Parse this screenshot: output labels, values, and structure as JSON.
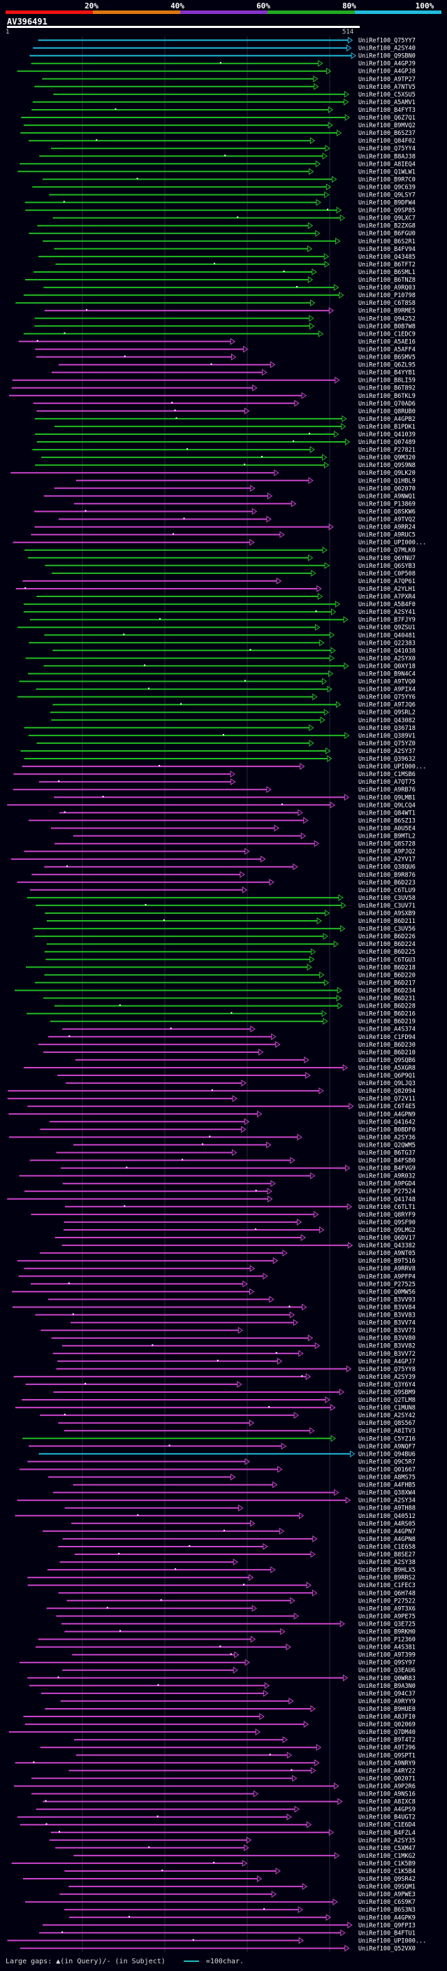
{
  "scale": {
    "labels": [
      "20%",
      "40%",
      "60%",
      "80%",
      "100%"
    ],
    "colors": [
      "#ee1111",
      "#dd7711",
      "#8833cc",
      "#22aa22",
      "#22bbdd"
    ]
  },
  "query": {
    "id": "AV396491",
    "start": "1",
    "end": "514"
  },
  "legend": {
    "gaps_text": "Large gaps: ▲(in Query)/- (in Subject)",
    "scale_text": "=100char."
  },
  "colors": {
    "cyan": "#22bbdd",
    "green": "#22bb22",
    "magenta": "#cc44cc",
    "label": "#ffffff"
  },
  "hits": [
    {
      "id": "UniRef100_Q75YY7",
      "c": "cyan"
    },
    {
      "id": "UniRef100_A2SY40",
      "c": "cyan"
    },
    {
      "id": "UniRef100_Q9SBN0",
      "c": "cyan"
    },
    {
      "id": "UniRef100_A4GPJ9",
      "c": "green"
    },
    {
      "id": "UniRef100_A4GPJ8",
      "c": "green"
    },
    {
      "id": "UniRef100_A9TP27",
      "c": "green"
    },
    {
      "id": "UniRef100_A7NTV5",
      "c": "green"
    },
    {
      "id": "UniRef100_C5XSU5",
      "c": "green"
    },
    {
      "id": "UniRef100_A5AMV1",
      "c": "green"
    },
    {
      "id": "UniRef100_B4FYT3",
      "c": "green"
    },
    {
      "id": "UniRef100_Q6Z7Q1",
      "c": "green"
    },
    {
      "id": "UniRef100_B9MVQ2",
      "c": "green"
    },
    {
      "id": "UniRef100_B6SZ37",
      "c": "green"
    },
    {
      "id": "UniRef100_Q84F02",
      "c": "green"
    },
    {
      "id": "UniRef100_Q75YY4",
      "c": "green"
    },
    {
      "id": "UniRef100_B8AJ38",
      "c": "green"
    },
    {
      "id": "UniRef100_A8IEQ4",
      "c": "green"
    },
    {
      "id": "UniRef100_Q1WLW1",
      "c": "green"
    },
    {
      "id": "UniRef100_B9R7C0",
      "c": "green"
    },
    {
      "id": "UniRef100_Q9C639",
      "c": "green"
    },
    {
      "id": "UniRef100_Q9LSY7",
      "c": "green"
    },
    {
      "id": "UniRef100_B9DFW4",
      "c": "green"
    },
    {
      "id": "UniRef100_Q9SP85",
      "c": "green"
    },
    {
      "id": "UniRef100_Q9LXC7",
      "c": "green"
    },
    {
      "id": "UniRef100_B2ZXG8",
      "c": "green"
    },
    {
      "id": "UniRef100_B6FGU0",
      "c": "green"
    },
    {
      "id": "UniRef100_B6S2R1",
      "c": "green"
    },
    {
      "id": "UniRef100_B4FV94",
      "c": "green"
    },
    {
      "id": "UniRef100_Q43485",
      "c": "green"
    },
    {
      "id": "UniRef100_B6TFT2",
      "c": "green"
    },
    {
      "id": "UniRef100_B6SML1",
      "c": "green"
    },
    {
      "id": "UniRef100_B6TNZ8",
      "c": "green"
    },
    {
      "id": "UniRef100_A9RQ03",
      "c": "green"
    },
    {
      "id": "UniRef100_P10798",
      "c": "green"
    },
    {
      "id": "UniRef100_C6T8S8",
      "c": "green"
    },
    {
      "id": "UniRef100_B9RME5",
      "c": "magenta"
    },
    {
      "id": "UniRef100_Q94252",
      "c": "green"
    },
    {
      "id": "UniRef100_B0B7W8",
      "c": "green"
    },
    {
      "id": "UniRef100_C1EDC9",
      "c": "green"
    },
    {
      "id": "UniRef100_A5AE16",
      "c": "magenta"
    },
    {
      "id": "UniRef100_A5AFF4",
      "c": "magenta"
    },
    {
      "id": "UniRef100_B6SMV5",
      "c": "magenta"
    },
    {
      "id": "UniRef100_Q6ZL95",
      "c": "magenta"
    },
    {
      "id": "UniRef100_B4YYB1",
      "c": "magenta"
    },
    {
      "id": "UniRef100_B8LI59",
      "c": "magenta"
    },
    {
      "id": "UniRef100_B6T892",
      "c": "magenta"
    },
    {
      "id": "UniRef100_B6TKL9",
      "c": "magenta"
    },
    {
      "id": "UniRef100_Q70AD6",
      "c": "magenta"
    },
    {
      "id": "UniRef100_Q8RUB0",
      "c": "magenta"
    },
    {
      "id": "UniRef100_A4GPB2",
      "c": "green"
    },
    {
      "id": "UniRef100_B1PDK1",
      "c": "green"
    },
    {
      "id": "UniRef100_Q41039",
      "c": "green"
    },
    {
      "id": "UniRef100_Q07489",
      "c": "green"
    },
    {
      "id": "UniRef100_P27821",
      "c": "green"
    },
    {
      "id": "UniRef100_Q9M320",
      "c": "green"
    },
    {
      "id": "UniRef100_Q9S9N8",
      "c": "green"
    },
    {
      "id": "UniRef100_Q9LK20",
      "c": "magenta"
    },
    {
      "id": "UniRef100_Q1HBL9",
      "c": "magenta"
    },
    {
      "id": "UniRef100_Q02070",
      "c": "magenta"
    },
    {
      "id": "UniRef100_A9NWQ1",
      "c": "magenta"
    },
    {
      "id": "UniRef100_P13869",
      "c": "magenta"
    },
    {
      "id": "UniRef100_Q8SKW6",
      "c": "magenta"
    },
    {
      "id": "UniRef100_A9TVQ2",
      "c": "magenta"
    },
    {
      "id": "UniRef100_A9RR24",
      "c": "magenta"
    },
    {
      "id": "UniRef100_A9RUC5",
      "c": "magenta"
    },
    {
      "id": "UniRef100_UPI000...",
      "c": "magenta"
    },
    {
      "id": "UniRef100_Q7MLK0",
      "c": "green"
    },
    {
      "id": "UniRef100_Q6YNU7",
      "c": "green"
    },
    {
      "id": "UniRef100_Q6SYB3",
      "c": "green"
    },
    {
      "id": "UniRef100_C0P508",
      "c": "green"
    },
    {
      "id": "UniRef100_A7QP61",
      "c": "magenta"
    },
    {
      "id": "UniRef100_A2YLH1",
      "c": "magenta"
    },
    {
      "id": "UniRef100_A7PXR4",
      "c": "green"
    },
    {
      "id": "UniRef100_A5B4F0",
      "c": "green"
    },
    {
      "id": "UniRef100_A2SY41",
      "c": "green"
    },
    {
      "id": "UniRef100_B7FJY9",
      "c": "green"
    },
    {
      "id": "UniRef100_Q9ZSU1",
      "c": "green"
    },
    {
      "id": "UniRef100_Q40481",
      "c": "green"
    },
    {
      "id": "UniRef100_Q22383",
      "c": "green"
    },
    {
      "id": "UniRef100_Q41038",
      "c": "green"
    },
    {
      "id": "UniRef100_A2SYX0",
      "c": "green"
    },
    {
      "id": "UniRef100_Q0XY18",
      "c": "green"
    },
    {
      "id": "UniRef100_B9N4C4",
      "c": "green"
    },
    {
      "id": "UniRef100_A9TVQ0",
      "c": "green"
    },
    {
      "id": "UniRef100_A9PIX4",
      "c": "green"
    },
    {
      "id": "UniRef100_Q75YY6",
      "c": "green"
    },
    {
      "id": "UniRef100_A9TJQ6",
      "c": "green"
    },
    {
      "id": "UniRef100_Q9SRL2",
      "c": "green"
    },
    {
      "id": "UniRef100_Q43082",
      "c": "green"
    },
    {
      "id": "UniRef100_Q36718",
      "c": "green"
    },
    {
      "id": "UniRef100_Q389V1",
      "c": "green"
    },
    {
      "id": "UniRef100_Q75YZ0",
      "c": "green"
    },
    {
      "id": "UniRef100_A2SY37",
      "c": "green"
    },
    {
      "id": "UniRef100_Q39632",
      "c": "green"
    },
    {
      "id": "UniRef100_UPI000...",
      "c": "magenta"
    },
    {
      "id": "UniRef100_C1MSB6",
      "c": "magenta"
    },
    {
      "id": "UniRef100_A7QT75",
      "c": "magenta"
    },
    {
      "id": "UniRef100_A9RB76",
      "c": "magenta"
    },
    {
      "id": "UniRef100_Q9LMB1",
      "c": "magenta"
    },
    {
      "id": "UniRef100_Q9LCQ4",
      "c": "magenta"
    },
    {
      "id": "UniRef100_Q84WT1",
      "c": "magenta"
    },
    {
      "id": "UniRef100_B6SZ13",
      "c": "magenta"
    },
    {
      "id": "UniRef100_A0U5E4",
      "c": "magenta"
    },
    {
      "id": "UniRef100_B9MTL2",
      "c": "magenta"
    },
    {
      "id": "UniRef100_Q8S728",
      "c": "magenta"
    },
    {
      "id": "UniRef100_A9PJQ2",
      "c": "magenta"
    },
    {
      "id": "UniRef100_A2YV17",
      "c": "magenta"
    },
    {
      "id": "UniRef100_Q38QU6",
      "c": "magenta"
    },
    {
      "id": "UniRef100_B9R876",
      "c": "magenta"
    },
    {
      "id": "UniRef100_B6D223",
      "c": "magenta"
    },
    {
      "id": "UniRef100_C6TLU9",
      "c": "magenta"
    },
    {
      "id": "UniRef100_C3UV58",
      "c": "green"
    },
    {
      "id": "UniRef100_C3UV71",
      "c": "green"
    },
    {
      "id": "UniRef100_A9SXB9",
      "c": "green"
    },
    {
      "id": "UniRef100_B6D211",
      "c": "green"
    },
    {
      "id": "UniRef100_C3UV56",
      "c": "green"
    },
    {
      "id": "UniRef100_B6D226",
      "c": "green"
    },
    {
      "id": "UniRef100_B6D224",
      "c": "green"
    },
    {
      "id": "UniRef100_B6D225",
      "c": "green"
    },
    {
      "id": "UniRef100_C6TGU3",
      "c": "green"
    },
    {
      "id": "UniRef100_B6D218",
      "c": "green"
    },
    {
      "id": "UniRef100_B6D220",
      "c": "green"
    },
    {
      "id": "UniRef100_B6D217",
      "c": "green"
    },
    {
      "id": "UniRef100_B6D234",
      "c": "green"
    },
    {
      "id": "UniRef100_B6D231",
      "c": "green"
    },
    {
      "id": "UniRef100_B6D228",
      "c": "green"
    },
    {
      "id": "UniRef100_B6D216",
      "c": "green"
    },
    {
      "id": "UniRef100_B6D219",
      "c": "green"
    },
    {
      "id": "UniRef100_A4S374",
      "c": "magenta"
    },
    {
      "id": "UniRef100_C1FD94",
      "c": "magenta"
    },
    {
      "id": "UniRef100_B6D230",
      "c": "magenta"
    },
    {
      "id": "UniRef100_B6D210",
      "c": "magenta"
    },
    {
      "id": "UniRef100_Q9SQB6",
      "c": "magenta"
    },
    {
      "id": "UniRef100_A5XGR8",
      "c": "magenta"
    },
    {
      "id": "UniRef100_Q6P9Q1",
      "c": "magenta"
    },
    {
      "id": "UniRef100_Q9LJQ3",
      "c": "magenta"
    },
    {
      "id": "UniRef100_Q82094",
      "c": "magenta"
    },
    {
      "id": "UniRef100_Q72V11",
      "c": "magenta"
    },
    {
      "id": "UniRef100_C6T4E5",
      "c": "magenta"
    },
    {
      "id": "UniRef100_A4GPN9",
      "c": "magenta"
    },
    {
      "id": "UniRef100_Q41642",
      "c": "magenta"
    },
    {
      "id": "UniRef100_B0BDF0",
      "c": "magenta"
    },
    {
      "id": "UniRef100_A2SY36",
      "c": "magenta"
    },
    {
      "id": "UniRef100_Q2QWM5",
      "c": "magenta"
    },
    {
      "id": "UniRef100_B6TG37",
      "c": "magenta"
    },
    {
      "id": "UniRef100_B4FSB0",
      "c": "magenta"
    },
    {
      "id": "UniRef100_B4FVG9",
      "c": "magenta"
    },
    {
      "id": "UniRef100_A9R032",
      "c": "magenta"
    },
    {
      "id": "UniRef100_A9PGD4",
      "c": "magenta"
    },
    {
      "id": "UniRef100_P27524",
      "c": "magenta"
    },
    {
      "id": "UniRef100_Q41748",
      "c": "magenta"
    },
    {
      "id": "UniRef100_C6TLT1",
      "c": "magenta"
    },
    {
      "id": "UniRef100_Q8RYF9",
      "c": "magenta"
    },
    {
      "id": "UniRef100_Q9SF90",
      "c": "magenta"
    },
    {
      "id": "UniRef100_Q9LMG2",
      "c": "magenta"
    },
    {
      "id": "UniRef100_Q6DV17",
      "c": "magenta"
    },
    {
      "id": "UniRef100_Q43382",
      "c": "magenta"
    },
    {
      "id": "UniRef100_A9NT05",
      "c": "magenta"
    },
    {
      "id": "UniRef100_B9T516",
      "c": "magenta"
    },
    {
      "id": "UniRef100_A9RRV8",
      "c": "magenta"
    },
    {
      "id": "UniRef100_A9PFP4",
      "c": "magenta"
    },
    {
      "id": "UniRef100_P27525",
      "c": "magenta"
    },
    {
      "id": "UniRef100_Q0MW56",
      "c": "magenta"
    },
    {
      "id": "UniRef100_B3VV93",
      "c": "magenta"
    },
    {
      "id": "UniRef100_B3VV84",
      "c": "magenta"
    },
    {
      "id": "UniRef100_B3VV83",
      "c": "magenta"
    },
    {
      "id": "UniRef100_B3VV74",
      "c": "magenta"
    },
    {
      "id": "UniRef100_B3VV73",
      "c": "magenta"
    },
    {
      "id": "UniRef100_B3VV80",
      "c": "magenta"
    },
    {
      "id": "UniRef100_B3VV82",
      "c": "magenta"
    },
    {
      "id": "UniRef100_B3VV72",
      "c": "magenta"
    },
    {
      "id": "UniRef100_A4GPJ7",
      "c": "magenta"
    },
    {
      "id": "UniRef100_Q75YY8",
      "c": "magenta"
    },
    {
      "id": "UniRef100_A2SY39",
      "c": "magenta"
    },
    {
      "id": "UniRef100_Q3Y6Y4",
      "c": "magenta"
    },
    {
      "id": "UniRef100_Q9SBM9",
      "c": "magenta"
    },
    {
      "id": "UniRef100_Q2TLM8",
      "c": "magenta"
    },
    {
      "id": "UniRef100_C1MUN8",
      "c": "magenta"
    },
    {
      "id": "UniRef100_A2SY42",
      "c": "magenta"
    },
    {
      "id": "UniRef100_Q8S567",
      "c": "magenta"
    },
    {
      "id": "UniRef100_A8ITV3",
      "c": "magenta"
    },
    {
      "id": "UniRef100_C5YZ16",
      "c": "green"
    },
    {
      "id": "UniRef100_A9NQF7",
      "c": "magenta"
    },
    {
      "id": "UniRef100_Q94BU6",
      "c": "cyan"
    },
    {
      "id": "UniRef100_Q9C5R7",
      "c": "magenta"
    },
    {
      "id": "UniRef100_Q01667",
      "c": "magenta"
    },
    {
      "id": "UniRef100_A8MS75",
      "c": "magenta"
    },
    {
      "id": "UniRef100_A4FHB5",
      "c": "magenta"
    },
    {
      "id": "UniRef100_Q38XW4",
      "c": "magenta"
    },
    {
      "id": "UniRef100_A2SY34",
      "c": "magenta"
    },
    {
      "id": "UniRef100_A9TH88",
      "c": "magenta"
    },
    {
      "id": "UniRef100_Q40512",
      "c": "magenta"
    },
    {
      "id": "UniRef100_A4RS05",
      "c": "magenta"
    },
    {
      "id": "UniRef100_A4GPN7",
      "c": "magenta"
    },
    {
      "id": "UniRef100_A4GPN8",
      "c": "magenta"
    },
    {
      "id": "UniRef100_C1E658",
      "c": "magenta"
    },
    {
      "id": "UniRef100_B8SE27",
      "c": "magenta"
    },
    {
      "id": "UniRef100_A2SY38",
      "c": "magenta"
    },
    {
      "id": "UniRef100_B9HLX5",
      "c": "magenta"
    },
    {
      "id": "UniRef100_B9RRS2",
      "c": "magenta"
    },
    {
      "id": "UniRef100_C1FEC3",
      "c": "magenta"
    },
    {
      "id": "UniRef100_Q6H748",
      "c": "magenta"
    },
    {
      "id": "UniRef100_P27522",
      "c": "magenta"
    },
    {
      "id": "UniRef100_A9T3X6",
      "c": "magenta"
    },
    {
      "id": "UniRef100_A9PE75",
      "c": "magenta"
    },
    {
      "id": "UniRef100_Q3E725",
      "c": "magenta"
    },
    {
      "id": "UniRef100_B9RKH0",
      "c": "magenta"
    },
    {
      "id": "UniRef100_P12360",
      "c": "magenta"
    },
    {
      "id": "UniRef100_A4S381",
      "c": "magenta"
    },
    {
      "id": "UniRef100_A9T399",
      "c": "magenta"
    },
    {
      "id": "UniRef100_Q9SY97",
      "c": "magenta"
    },
    {
      "id": "UniRef100_Q3EAU6",
      "c": "magenta"
    },
    {
      "id": "UniRef100_Q0WR83",
      "c": "magenta"
    },
    {
      "id": "UniRef100_B9A3N0",
      "c": "magenta"
    },
    {
      "id": "UniRef100_Q94C37",
      "c": "magenta"
    },
    {
      "id": "UniRef100_A9RYY9",
      "c": "magenta"
    },
    {
      "id": "UniRef100_B9HUE0",
      "c": "magenta"
    },
    {
      "id": "UniRef100_A8JFI0",
      "c": "magenta"
    },
    {
      "id": "UniRef100_Q02069",
      "c": "magenta"
    },
    {
      "id": "UniRef100_Q7DM40",
      "c": "magenta"
    },
    {
      "id": "UniRef100_B9T4T2",
      "c": "magenta"
    },
    {
      "id": "UniRef100_A9TJ96",
      "c": "magenta"
    },
    {
      "id": "UniRef100_Q9SPT1",
      "c": "magenta"
    },
    {
      "id": "UniRef100_A9NRY9",
      "c": "magenta"
    },
    {
      "id": "UniRef100_A4RY22",
      "c": "magenta"
    },
    {
      "id": "UniRef100_Q02071",
      "c": "magenta"
    },
    {
      "id": "UniRef100_A9P2R6",
      "c": "magenta"
    },
    {
      "id": "UniRef100_A9NS16",
      "c": "magenta"
    },
    {
      "id": "UniRef100_A8IXC8",
      "c": "magenta"
    },
    {
      "id": "UniRef100_A4GPS9",
      "c": "magenta"
    },
    {
      "id": "UniRef100_B4UGT2",
      "c": "magenta"
    },
    {
      "id": "UniRef100_C1E6D4",
      "c": "magenta"
    },
    {
      "id": "UniRef100_B4FZL4",
      "c": "magenta"
    },
    {
      "id": "UniRef100_A2SY35",
      "c": "magenta"
    },
    {
      "id": "UniRef100_C5XM47",
      "c": "magenta"
    },
    {
      "id": "UniRef100_C1MKG2",
      "c": "magenta"
    },
    {
      "id": "UniRef100_C1K5B9",
      "c": "magenta"
    },
    {
      "id": "UniRef100_C1K5B4",
      "c": "magenta"
    },
    {
      "id": "UniRef100_Q9SR42",
      "c": "magenta"
    },
    {
      "id": "UniRef100_Q9SQM1",
      "c": "magenta"
    },
    {
      "id": "UniRef100_A9PWE3",
      "c": "magenta"
    },
    {
      "id": "UniRef100_C6S9K7",
      "c": "magenta"
    },
    {
      "id": "UniRef100_B6S3N3",
      "c": "magenta"
    },
    {
      "id": "UniRef100_A4GPK9",
      "c": "magenta"
    },
    {
      "id": "UniRef100_Q9FPI3",
      "c": "magenta"
    },
    {
      "id": "UniRef100_B4FTU1",
      "c": "magenta"
    },
    {
      "id": "UniRef100_UPI000...",
      "c": "magenta"
    },
    {
      "id": "UniRef100_Q52VX0",
      "c": "magenta"
    }
  ]
}
